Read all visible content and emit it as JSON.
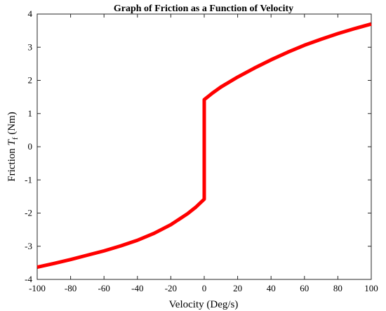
{
  "chart_data": {
    "type": "line",
    "title": "Graph of Friction as a Function of Velocity",
    "xlabel": "Velocity (Deg/s)",
    "ylabel_parts": [
      "Friction ",
      "T",
      "f",
      " (Nm)"
    ],
    "xlim": [
      -100,
      100
    ],
    "ylim": [
      -4,
      4
    ],
    "xticks": [
      -100,
      -80,
      -60,
      -40,
      -20,
      0,
      20,
      40,
      60,
      80,
      100
    ],
    "yticks": [
      -4,
      -3,
      -2,
      -1,
      0,
      1,
      2,
      3,
      4
    ],
    "grid": false,
    "series": [
      {
        "color": "#ff0000",
        "x": [
          -100,
          -90,
          -80,
          -70,
          -60,
          -50,
          -40,
          -30,
          -20,
          -10,
          -5,
          0,
          0,
          5,
          10,
          20,
          30,
          40,
          50,
          60,
          70,
          80,
          90,
          100
        ],
        "y": [
          -3.63,
          -3.52,
          -3.4,
          -3.27,
          -3.14,
          -2.99,
          -2.82,
          -2.61,
          -2.35,
          -2.02,
          -1.82,
          -1.58,
          1.42,
          1.62,
          1.8,
          2.1,
          2.37,
          2.62,
          2.85,
          3.06,
          3.24,
          3.41,
          3.56,
          3.7
        ]
      }
    ]
  }
}
